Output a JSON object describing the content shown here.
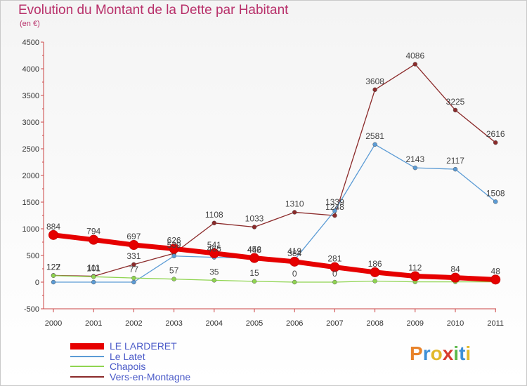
{
  "header": {
    "title": "Evolution du Montant de la Dette par Habitant",
    "unit": "(en €)"
  },
  "logo": {
    "letters": [
      "P",
      "r",
      "o",
      "x",
      "i",
      "t",
      "i"
    ],
    "colors": [
      "#e8832a",
      "#3d8fd6",
      "#e2b92a",
      "#d83c30",
      "#5cb84a",
      "#3d8fd6",
      "#e2b92a"
    ]
  },
  "chart_data": {
    "type": "line",
    "x": [
      "2000",
      "2001",
      "2002",
      "2003",
      "2004",
      "2005",
      "2006",
      "2007",
      "2008",
      "2009",
      "2010",
      "2011"
    ],
    "ylim": [
      -500,
      4500
    ],
    "yticks": [
      "-500",
      "0",
      "500",
      "1000",
      "1500",
      "2000",
      "2500",
      "3000",
      "3500",
      "4000",
      "4500"
    ],
    "ytick_values": [
      -500,
      0,
      500,
      1000,
      1500,
      2000,
      2500,
      3000,
      3500,
      4000,
      4500
    ],
    "grid": false,
    "legend_position": "bottom-left",
    "series": [
      {
        "name": "LE LARDERET",
        "color": "#e60000",
        "values": [
          884,
          794,
          697,
          626,
          541,
          452,
          384,
          281,
          186,
          112,
          84,
          48
        ],
        "labels": [
          "884",
          "794",
          "697",
          "626",
          "541",
          "452",
          "384",
          "281",
          "186",
          "112",
          "84",
          "48"
        ]
      },
      {
        "name": "Le Latet",
        "color": "#5b9bd5",
        "values": [
          0,
          0,
          0,
          490,
          465,
          446,
          419,
          1339,
          2581,
          2143,
          2117,
          1508
        ],
        "labels": [
          "",
          "",
          "",
          "",
          "465",
          "446",
          "419",
          "1339",
          "2581",
          "2143",
          "2117",
          "1508"
        ]
      },
      {
        "name": "Chapois",
        "color": "#8fd450",
        "values": [
          122,
          101,
          77,
          57,
          35,
          15,
          0,
          0,
          20,
          5,
          5,
          5
        ],
        "labels": [
          "122",
          "101",
          "77",
          "57",
          "35",
          "15",
          "0",
          "0",
          "",
          "",
          "",
          ""
        ]
      },
      {
        "name": "Vers-en-Montagne",
        "color": "#8b2a2a",
        "values": [
          127,
          111,
          331,
          539,
          1108,
          1033,
          1310,
          1248,
          3608,
          4086,
          3225,
          2616
        ],
        "labels": [
          "127",
          "111",
          "331",
          "539",
          "1108",
          "1033",
          "1310",
          "1248",
          "3608",
          "4086",
          "3225",
          "2616"
        ]
      }
    ]
  }
}
